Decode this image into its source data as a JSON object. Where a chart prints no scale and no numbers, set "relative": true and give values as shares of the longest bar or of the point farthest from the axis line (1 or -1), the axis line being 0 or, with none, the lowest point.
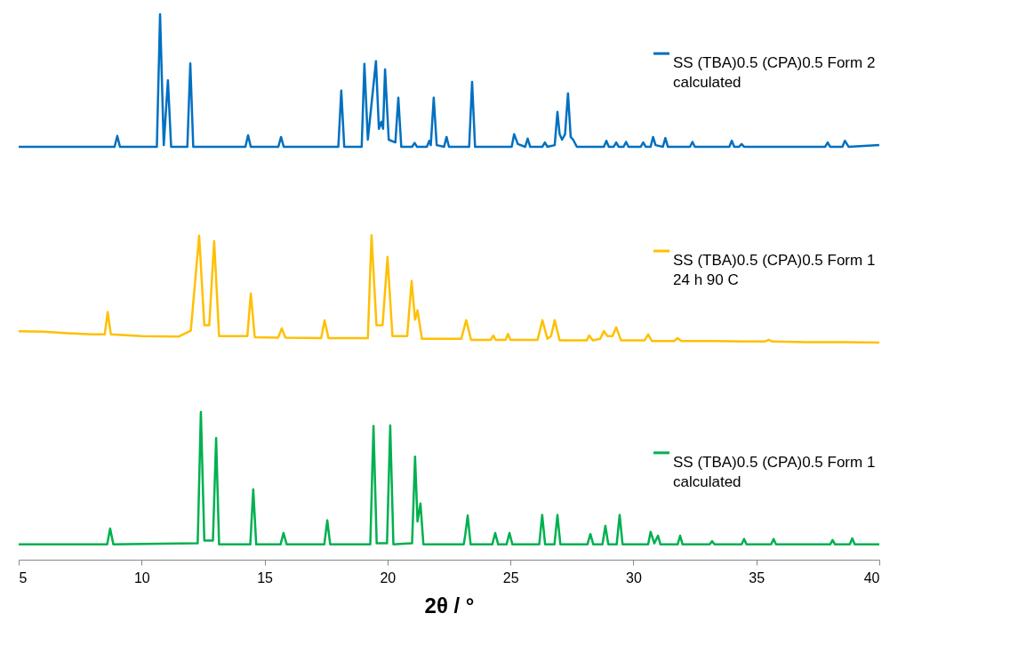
{
  "chart_data": {
    "type": "line",
    "relative": true,
    "xlabel": "2θ / °",
    "xlim": [
      5,
      40
    ],
    "xticks": [
      5,
      10,
      15,
      20,
      25,
      30,
      35,
      40
    ],
    "grid": false,
    "tick_labels": "x",
    "legend": "right",
    "series": [
      {
        "name": "SS (TBA)0.5 (CPA)0.5 Form 2\ncalculated",
        "color": "#0070c0",
        "x": [
          5,
          8.9,
          9.01,
          9.12,
          10.62,
          10.75,
          10.9,
          11.07,
          11.2,
          11.86,
          11.98,
          12.1,
          14.22,
          14.33,
          14.44,
          15.56,
          15.67,
          15.78,
          18.0,
          18.12,
          18.24,
          18.95,
          19.06,
          19.2,
          19.53,
          19.65,
          19.75,
          19.82,
          19.9,
          20.05,
          20.32,
          20.44,
          20.56,
          21.0,
          21.1,
          21.2,
          21.6,
          21.7,
          21.76,
          21.88,
          22.0,
          22.3,
          22.4,
          22.5,
          23.32,
          23.44,
          23.56,
          25.05,
          25.15,
          25.3,
          25.6,
          25.7,
          25.8,
          26.3,
          26.4,
          26.5,
          26.8,
          26.91,
          27.0,
          27.1,
          27.22,
          27.34,
          27.45,
          27.55,
          27.7,
          28.8,
          28.9,
          29.0,
          29.2,
          29.3,
          29.4,
          29.6,
          29.7,
          29.8,
          30.3,
          30.4,
          30.5,
          30.7,
          30.8,
          30.9,
          31.2,
          31.3,
          31.4,
          32.3,
          32.4,
          32.5,
          33.9,
          34.0,
          34.1,
          34.3,
          34.4,
          34.5,
          37.8,
          37.9,
          38.0,
          38.5,
          38.6,
          38.75,
          40
        ],
        "values": [
          0.757,
          0.757,
          0.777,
          0.757,
          0.757,
          1.0,
          0.76,
          0.879,
          0.757,
          0.757,
          0.91,
          0.757,
          0.757,
          0.778,
          0.757,
          0.757,
          0.775,
          0.757,
          0.757,
          0.86,
          0.757,
          0.757,
          0.909,
          0.77,
          0.914,
          0.79,
          0.803,
          0.79,
          0.899,
          0.77,
          0.765,
          0.847,
          0.757,
          0.757,
          0.764,
          0.757,
          0.757,
          0.768,
          0.76,
          0.847,
          0.76,
          0.757,
          0.775,
          0.757,
          0.757,
          0.876,
          0.757,
          0.757,
          0.78,
          0.762,
          0.757,
          0.772,
          0.757,
          0.757,
          0.765,
          0.757,
          0.76,
          0.821,
          0.78,
          0.77,
          0.78,
          0.855,
          0.775,
          0.77,
          0.757,
          0.757,
          0.768,
          0.757,
          0.757,
          0.765,
          0.757,
          0.757,
          0.766,
          0.757,
          0.757,
          0.765,
          0.757,
          0.757,
          0.775,
          0.76,
          0.757,
          0.773,
          0.757,
          0.757,
          0.766,
          0.757,
          0.757,
          0.768,
          0.757,
          0.757,
          0.762,
          0.757,
          0.757,
          0.765,
          0.757,
          0.757,
          0.768,
          0.757,
          0.76
        ]
      },
      {
        "name": "SS (TBA)0.5 (CPA)0.5 Form 1\n24 h 90 C",
        "color": "#ffc000",
        "x": [
          5,
          6,
          7,
          8,
          8.5,
          8.62,
          8.75,
          10,
          11.5,
          12.0,
          12.34,
          12.55,
          12.75,
          12.95,
          13.15,
          14.3,
          14.44,
          14.6,
          15.55,
          15.7,
          15.85,
          17.3,
          17.44,
          17.6,
          19.2,
          19.35,
          19.55,
          19.8,
          20.0,
          20.2,
          20.8,
          20.98,
          21.12,
          21.22,
          21.4,
          23.0,
          23.2,
          23.4,
          24.2,
          24.3,
          24.4,
          24.8,
          24.9,
          25.0,
          26.1,
          26.3,
          26.5,
          26.65,
          26.8,
          27.0,
          28.1,
          28.2,
          28.35,
          28.65,
          28.8,
          28.95,
          29.15,
          29.3,
          29.5,
          30.45,
          30.6,
          30.75,
          31.65,
          31.8,
          31.95,
          33.2,
          34.5,
          35.35,
          35.5,
          35.65,
          37,
          38.5,
          40
        ],
        "values": [
          0.419,
          0.418,
          0.415,
          0.413,
          0.413,
          0.454,
          0.413,
          0.41,
          0.409,
          0.42,
          0.594,
          0.43,
          0.43,
          0.584,
          0.41,
          0.41,
          0.488,
          0.408,
          0.407,
          0.424,
          0.407,
          0.406,
          0.439,
          0.406,
          0.406,
          0.595,
          0.43,
          0.43,
          0.555,
          0.41,
          0.41,
          0.511,
          0.44,
          0.457,
          0.405,
          0.405,
          0.439,
          0.403,
          0.403,
          0.411,
          0.403,
          0.403,
          0.414,
          0.403,
          0.403,
          0.439,
          0.405,
          0.41,
          0.439,
          0.402,
          0.402,
          0.411,
          0.402,
          0.405,
          0.419,
          0.41,
          0.41,
          0.426,
          0.402,
          0.402,
          0.413,
          0.401,
          0.401,
          0.406,
          0.401,
          0.401,
          0.4,
          0.4,
          0.403,
          0.4,
          0.399,
          0.399,
          0.398
        ]
      },
      {
        "name": "SS (TBA)0.5 (CPA)0.5 Form 1\ncalculated",
        "color": "#00b050",
        "x": [
          5,
          8.6,
          8.72,
          8.85,
          12.28,
          12.41,
          12.55,
          12.9,
          13.03,
          13.15,
          14.42,
          14.54,
          14.66,
          15.65,
          15.77,
          15.9,
          17.43,
          17.55,
          17.67,
          19.3,
          19.43,
          19.56,
          19.98,
          20.11,
          20.24,
          21.0,
          21.12,
          21.22,
          21.34,
          21.46,
          23.1,
          23.16,
          23.26,
          23.38,
          24.26,
          24.38,
          24.5,
          24.84,
          24.96,
          25.08,
          26.17,
          26.29,
          26.41,
          26.79,
          26.91,
          27.03,
          28.13,
          28.25,
          28.37,
          28.74,
          28.86,
          28.98,
          29.32,
          29.44,
          29.56,
          30.6,
          30.7,
          30.85,
          31.0,
          31.1,
          31.8,
          31.9,
          32.0,
          33.1,
          33.2,
          33.3,
          34.4,
          34.5,
          34.6,
          35.6,
          35.7,
          35.8,
          38.0,
          38.1,
          38.2,
          38.8,
          38.9,
          39.0,
          40
        ],
        "values": [
          0.028,
          0.028,
          0.057,
          0.028,
          0.03,
          0.271,
          0.035,
          0.035,
          0.223,
          0.028,
          0.028,
          0.129,
          0.028,
          0.028,
          0.049,
          0.028,
          0.028,
          0.072,
          0.028,
          0.028,
          0.245,
          0.03,
          0.03,
          0.246,
          0.028,
          0.03,
          0.189,
          0.07,
          0.103,
          0.028,
          0.028,
          0.045,
          0.081,
          0.028,
          0.028,
          0.049,
          0.028,
          0.028,
          0.049,
          0.028,
          0.028,
          0.082,
          0.028,
          0.028,
          0.082,
          0.028,
          0.028,
          0.047,
          0.028,
          0.028,
          0.062,
          0.028,
          0.028,
          0.082,
          0.028,
          0.028,
          0.051,
          0.03,
          0.044,
          0.028,
          0.028,
          0.044,
          0.028,
          0.028,
          0.034,
          0.028,
          0.028,
          0.038,
          0.028,
          0.028,
          0.038,
          0.028,
          0.028,
          0.036,
          0.028,
          0.028,
          0.039,
          0.028,
          0.028
        ]
      }
    ]
  }
}
